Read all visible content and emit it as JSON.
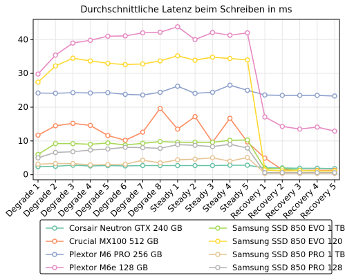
{
  "chart_data": {
    "type": "line",
    "title": "Durchschnittliche Latenz beim Schreiben in ms",
    "xlabel": "",
    "ylabel": "",
    "categories": [
      "Degrade 1",
      "Degrade 2",
      "Degrade 3",
      "Degrade 4",
      "Degrade 5",
      "Degrade 6",
      "Degrade 7",
      "Degrade 8",
      "Steady 1",
      "Steady 2",
      "Steady 3",
      "Steady 4",
      "Steady 5",
      "Recovery 1",
      "Recovery 2",
      "Recovery 3",
      "Recovery 4",
      "Recovery 5"
    ],
    "ylim": [
      -1.5,
      46
    ],
    "yticks": [
      0,
      10,
      20,
      30,
      40
    ],
    "grid": true,
    "legend_position": "bottom",
    "series": [
      {
        "name": "Corsair Neutron GTX 240 GB",
        "color": "#66c2a5",
        "values": [
          2.4,
          2.5,
          2.8,
          2.6,
          2.7,
          2.6,
          2.7,
          2.7,
          2.7,
          2.7,
          2.7,
          2.8,
          2.8,
          2.0,
          2.0,
          1.9,
          1.9,
          1.8
        ]
      },
      {
        "name": "Crucial MX100 512 GB",
        "color": "#fc8d62",
        "values": [
          11.7,
          14.5,
          15.2,
          14.6,
          11.6,
          10.2,
          12.6,
          19.6,
          13.5,
          17.2,
          9.6,
          16.7,
          9.7,
          4.9,
          1.5,
          1.3,
          1.3,
          1.3
        ]
      },
      {
        "name": "Plextor M6 PRO 256 GB",
        "color": "#8da0cb",
        "values": [
          24.2,
          24.1,
          24.3,
          24.2,
          24.3,
          23.8,
          23.6,
          24.4,
          26.2,
          24.1,
          24.4,
          26.5,
          25.0,
          23.6,
          23.5,
          23.5,
          23.5,
          23.3
        ]
      },
      {
        "name": "Plextor M6e 128 GB",
        "color": "#e78ac3",
        "values": [
          29.8,
          35.4,
          39.0,
          39.8,
          41.0,
          41.1,
          42.0,
          42.2,
          43.8,
          40.0,
          42.1,
          41.3,
          42.0,
          17.1,
          14.3,
          13.5,
          14.1,
          12.9
        ]
      },
      {
        "name": "Samsung SSD 850 EVO 1 TB",
        "color": "#a6d854",
        "values": [
          6.0,
          9.2,
          9.2,
          9.0,
          9.4,
          8.8,
          9.3,
          9.8,
          9.6,
          9.6,
          9.6,
          10.2,
          10.3,
          1.8,
          1.8,
          1.3,
          1.1,
          1.1
        ]
      },
      {
        "name": "Samsung SSD 850 EVO 120 GB",
        "color": "#ffd92f",
        "values": [
          27.4,
          32.2,
          34.5,
          33.7,
          33.0,
          32.6,
          32.8,
          33.7,
          35.2,
          33.9,
          34.8,
          34.4,
          34.0,
          1.4,
          1.1,
          1.2,
          1.1,
          1.1
        ]
      },
      {
        "name": "Samsung SSD 850 PRO 1 TB",
        "color": "#e5c494",
        "values": [
          3.1,
          3.3,
          3.3,
          2.9,
          3.0,
          3.1,
          4.3,
          3.5,
          4.4,
          4.6,
          5.0,
          4.0,
          5.1,
          0.4,
          0.4,
          0.4,
          0.4,
          0.4
        ]
      },
      {
        "name": "Samsung SSD 850 PRO 128 GB",
        "color": "#b3b3b3",
        "values": [
          5.0,
          6.6,
          6.8,
          7.3,
          7.6,
          8.1,
          8.0,
          7.8,
          8.9,
          8.7,
          8.3,
          9.0,
          7.9,
          0.6,
          0.6,
          0.6,
          0.6,
          0.6
        ]
      }
    ]
  }
}
